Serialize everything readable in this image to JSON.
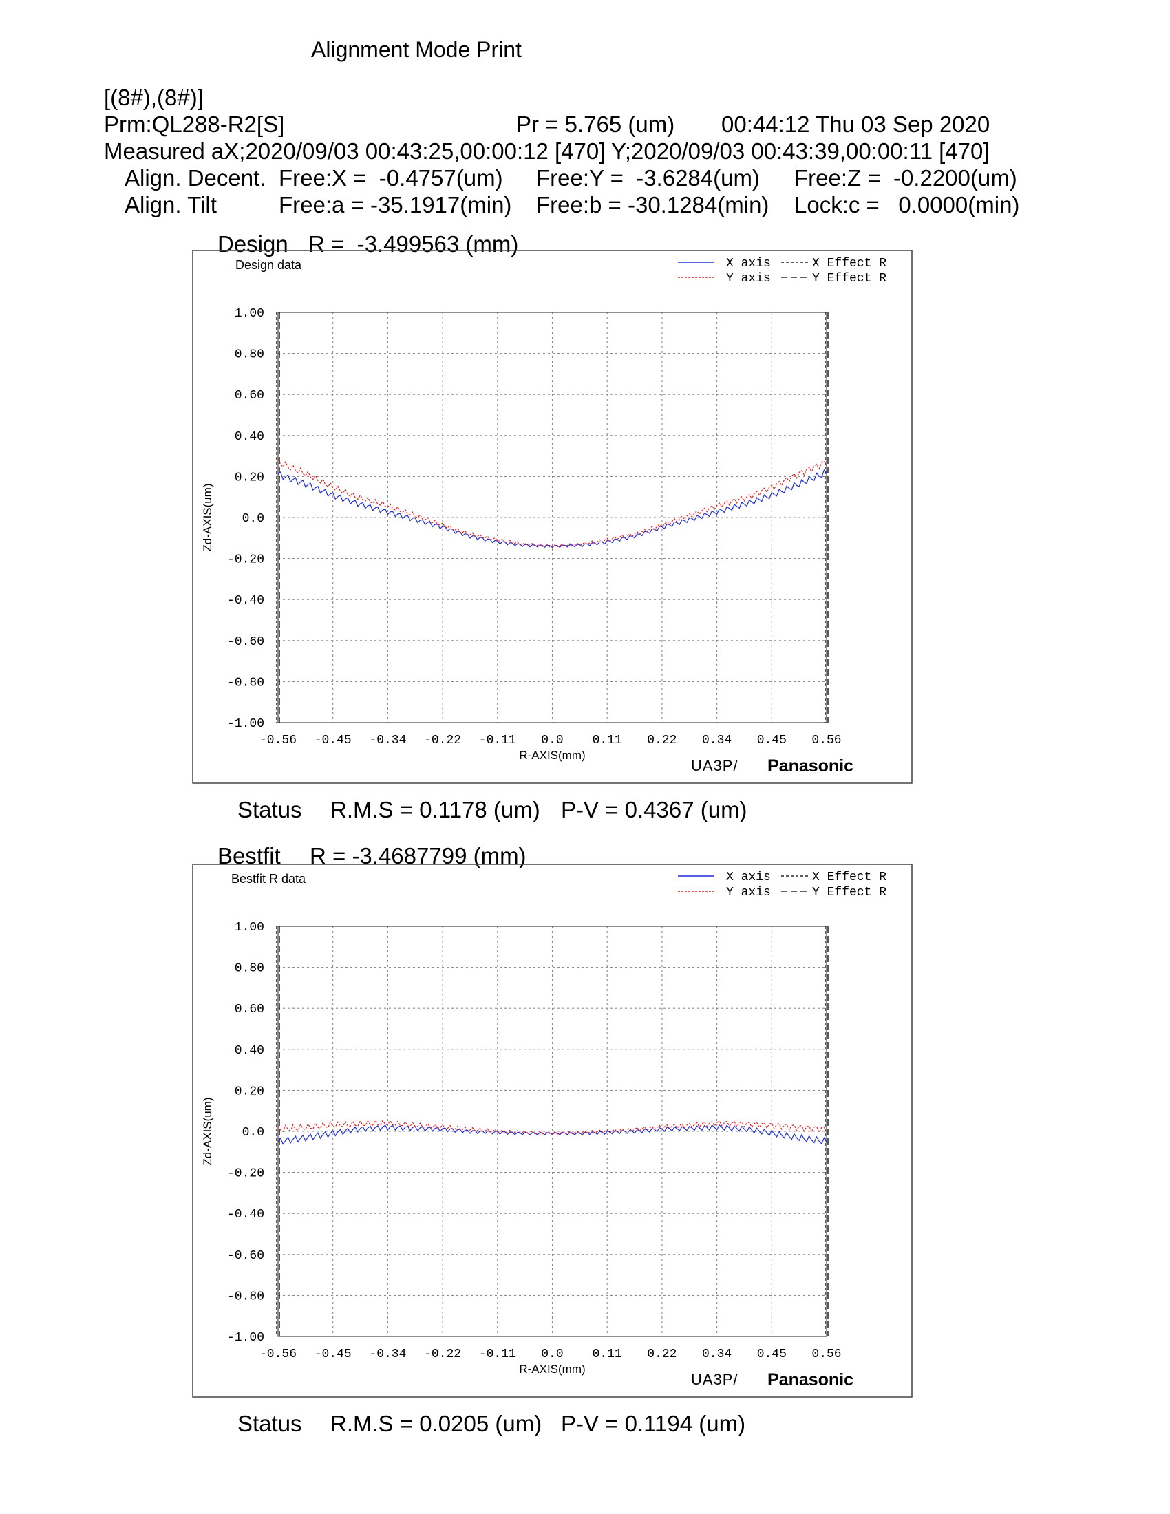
{
  "page": {
    "title": "Alignment Mode Print",
    "ids": "[(8#),(8#)]",
    "prm": "Prm:QL288-R2[S]",
    "pr": "Pr = 5.765 (um)",
    "timestamp": "00:44:12 Thu 03 Sep 2020",
    "measured": "Measured aX;2020/09/03 00:43:25,00:00:12 [470] Y;2020/09/03 00:43:39,00:00:11 [470]",
    "decent_label": "Align. Decent.",
    "decent_x": "Free:X =  -0.4757(um)",
    "decent_y": "Free:Y =  -3.6284(um)",
    "decent_z": "Free:Z =  -0.2200(um)",
    "tilt_label": "Align. Tilt",
    "tilt_a": "Free:a = -35.1917(min)",
    "tilt_b": "Free:b = -30.1284(min)",
    "tilt_c": "Lock:c =   0.0000(min)"
  },
  "sections": [
    {
      "title": "Design",
      "r_text": "R =  -3.499563 (mm)",
      "status_label": "Status",
      "rms": "R.M.S = 0.1178 (um)",
      "pv": "P-V = 0.4367 (um)"
    },
    {
      "title": "Bestfit",
      "r_text": "R = -3.4687799 (mm)",
      "status_label": "Status",
      "rms": "R.M.S = 0.0205 (um)",
      "pv": "P-V = 0.1194 (um)"
    }
  ],
  "chart_data": [
    {
      "type": "line",
      "title": "Design data",
      "xlabel": "R-AXIS(mm)",
      "ylabel": "Zd-AXIS(um)",
      "xlim": [
        -0.56,
        0.56
      ],
      "ylim": [
        -1.0,
        1.0
      ],
      "x_ticks": [
        "-0.56",
        "-0.45",
        "-0.34",
        "-0.22",
        "-0.11",
        "0.0",
        "0.11",
        "0.22",
        "0.34",
        "0.45",
        "0.56"
      ],
      "y_ticks": [
        "1.00",
        "0.80",
        "0.60",
        "0.40",
        "0.20",
        "0.0",
        "-0.20",
        "-0.40",
        "-0.60",
        "-0.80",
        "-1.00"
      ],
      "grid": true,
      "legend_position": "top-right",
      "legend": [
        "X axis",
        "Y axis",
        "X Effect R",
        "Y Effect R"
      ],
      "colors": {
        "x_axis": "#1f2fd6",
        "y_axis": "#e62020",
        "effect": "#000000"
      },
      "effect_r": [
        -0.56,
        0.56
      ],
      "brand": [
        "UA3P/",
        "Panasonic"
      ],
      "series": [
        {
          "name": "X axis",
          "x": [
            -0.56,
            -0.5,
            -0.45,
            -0.4,
            -0.34,
            -0.28,
            -0.22,
            -0.17,
            -0.11,
            -0.06,
            0.0,
            0.06,
            0.11,
            0.17,
            0.22,
            0.28,
            0.34,
            0.4,
            0.45,
            0.5,
            0.56
          ],
          "y": [
            0.21,
            0.16,
            0.11,
            0.07,
            0.03,
            -0.01,
            -0.05,
            -0.09,
            -0.12,
            -0.135,
            -0.14,
            -0.135,
            -0.12,
            -0.09,
            -0.05,
            -0.01,
            0.03,
            0.07,
            0.11,
            0.16,
            0.22
          ]
        },
        {
          "name": "Y axis",
          "x": [
            -0.56,
            -0.5,
            -0.45,
            -0.4,
            -0.34,
            -0.28,
            -0.22,
            -0.17,
            -0.11,
            -0.06,
            0.0,
            0.06,
            0.11,
            0.17,
            0.22,
            0.28,
            0.34,
            0.4,
            0.45,
            0.5,
            0.56
          ],
          "y": [
            0.27,
            0.21,
            0.15,
            0.1,
            0.06,
            0.01,
            -0.04,
            -0.08,
            -0.11,
            -0.13,
            -0.14,
            -0.13,
            -0.11,
            -0.08,
            -0.04,
            0.01,
            0.06,
            0.1,
            0.15,
            0.21,
            0.27
          ]
        }
      ]
    },
    {
      "type": "line",
      "title": "Bestfit R data",
      "xlabel": "R-AXIS(mm)",
      "ylabel": "Zd-AXIS(um)",
      "xlim": [
        -0.56,
        0.56
      ],
      "ylim": [
        -1.0,
        1.0
      ],
      "x_ticks": [
        "-0.56",
        "-0.45",
        "-0.34",
        "-0.22",
        "-0.11",
        "0.0",
        "0.11",
        "0.22",
        "0.34",
        "0.45",
        "0.56"
      ],
      "y_ticks": [
        "1.00",
        "0.80",
        "0.60",
        "0.40",
        "0.20",
        "0.0",
        "-0.20",
        "-0.40",
        "-0.60",
        "-0.80",
        "-1.00"
      ],
      "grid": true,
      "legend_position": "top-right",
      "legend": [
        "X axis",
        "Y axis",
        "X Effect R",
        "Y Effect R"
      ],
      "colors": {
        "x_axis": "#1f2fd6",
        "y_axis": "#e62020",
        "effect": "#000000"
      },
      "effect_r": [
        -0.56,
        0.56
      ],
      "brand": [
        "UA3P/",
        "Panasonic"
      ],
      "series": [
        {
          "name": "X axis",
          "x": [
            -0.56,
            -0.5,
            -0.45,
            -0.4,
            -0.34,
            -0.28,
            -0.22,
            -0.17,
            -0.11,
            -0.06,
            0.0,
            0.06,
            0.11,
            0.17,
            0.22,
            0.28,
            0.34,
            0.4,
            0.45,
            0.5,
            0.56
          ],
          "y": [
            -0.05,
            -0.03,
            -0.01,
            0.01,
            0.02,
            0.015,
            0.01,
            0.0,
            -0.005,
            -0.01,
            -0.01,
            -0.01,
            -0.005,
            0.0,
            0.01,
            0.015,
            0.02,
            0.01,
            -0.01,
            -0.03,
            -0.05
          ]
        },
        {
          "name": "Y axis",
          "x": [
            -0.56,
            -0.5,
            -0.45,
            -0.4,
            -0.34,
            -0.28,
            -0.22,
            -0.17,
            -0.11,
            -0.06,
            0.0,
            0.06,
            0.11,
            0.17,
            0.22,
            0.28,
            0.34,
            0.4,
            0.45,
            0.5,
            0.56
          ],
          "y": [
            0.01,
            0.02,
            0.03,
            0.035,
            0.04,
            0.03,
            0.02,
            0.01,
            0.0,
            -0.005,
            -0.01,
            -0.005,
            0.0,
            0.01,
            0.02,
            0.03,
            0.04,
            0.035,
            0.03,
            0.02,
            0.01
          ]
        }
      ]
    }
  ]
}
